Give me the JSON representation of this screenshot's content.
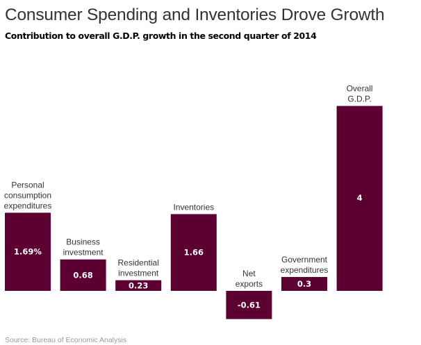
{
  "chart_data": {
    "type": "bar",
    "title": "Consumer Spending and Inventories Drove Growth",
    "subtitle": "Contribution to overall G.D.P. growth in the second quarter of 2014",
    "source": "Source: Bureau of Economic Analysis",
    "xlabel": "",
    "ylabel": "",
    "ylim": [
      -0.61,
      4
    ],
    "grid": false,
    "legend": "none",
    "bar_color": "#5c0031",
    "categories": [
      [
        "Personal",
        "consumption",
        "expenditures"
      ],
      [
        "Business",
        "investment"
      ],
      [
        "Residential",
        "investment"
      ],
      [
        "Inventories"
      ],
      [
        "Net",
        "exports"
      ],
      [
        "Government",
        "expenditures"
      ],
      [
        "Overall",
        "G.D.P."
      ]
    ],
    "values": [
      1.69,
      0.68,
      0.23,
      1.66,
      -0.61,
      0.3,
      4
    ],
    "value_labels": [
      "1.69%",
      "0.68",
      "0.23",
      "1.66",
      "-0.61",
      "0.3",
      "4"
    ]
  }
}
